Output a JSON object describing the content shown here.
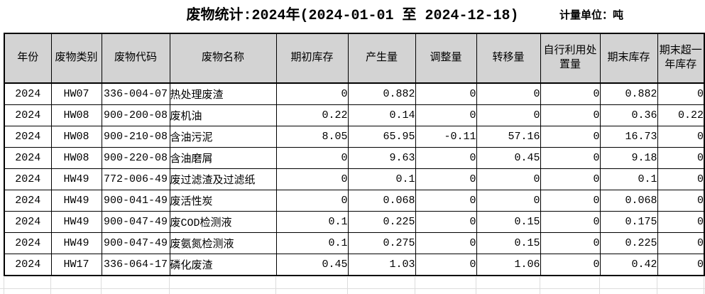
{
  "title": "废物统计:2024年(2024-01-01 至 2024-12-18)",
  "unit_label": "计量单位：吨",
  "colors": {
    "header_bg": "#d3d3d3",
    "table_border": "#000000",
    "sheet_gridline": "#dcdcdc",
    "background": "#ffffff"
  },
  "table": {
    "headers": [
      "年份",
      "废物类别",
      "废物代码",
      "废物名称",
      "期初库存",
      "产生量",
      "调整量",
      "转移量",
      "自行利用处置量",
      "期末库存",
      "期末超一年库存"
    ],
    "alignments": [
      "center",
      "center",
      "center",
      "left",
      "right",
      "right",
      "right",
      "right",
      "right",
      "right",
      "right"
    ],
    "rows": [
      [
        "2024",
        "HW07",
        "336-004-07",
        "热处理废渣",
        "0",
        "0.882",
        "0",
        "0",
        "0",
        "0.882",
        "0"
      ],
      [
        "2024",
        "HW08",
        "900-200-08",
        "废机油",
        "0.22",
        "0.14",
        "0",
        "0",
        "0",
        "0.36",
        "0.22"
      ],
      [
        "2024",
        "HW08",
        "900-210-08",
        "含油污泥",
        "8.05",
        "65.95",
        "-0.11",
        "57.16",
        "0",
        "16.73",
        "0"
      ],
      [
        "2024",
        "HW08",
        "900-220-08",
        "含油磨屑",
        "0",
        "9.63",
        "0",
        "0.45",
        "0",
        "9.18",
        "0"
      ],
      [
        "2024",
        "HW49",
        "772-006-49",
        "废过滤渣及过滤纸",
        "0",
        "0.1",
        "0",
        "0",
        "0",
        "0.1",
        "0"
      ],
      [
        "2024",
        "HW49",
        "900-041-49",
        "废活性炭",
        "0",
        "0.068",
        "0",
        "0",
        "0",
        "0.068",
        "0"
      ],
      [
        "2024",
        "HW49",
        "900-047-49",
        "废COD检测液",
        "0.1",
        "0.225",
        "0",
        "0.15",
        "0",
        "0.175",
        "0"
      ],
      [
        "2024",
        "HW49",
        "900-047-49",
        "废氨氮检测液",
        "0.1",
        "0.275",
        "0",
        "0.15",
        "0",
        "0.225",
        "0"
      ],
      [
        "2024",
        "HW17",
        "336-064-17",
        "磷化废渣",
        "0.45",
        "1.03",
        "0",
        "1.06",
        "0",
        "0.42",
        "0"
      ]
    ]
  }
}
